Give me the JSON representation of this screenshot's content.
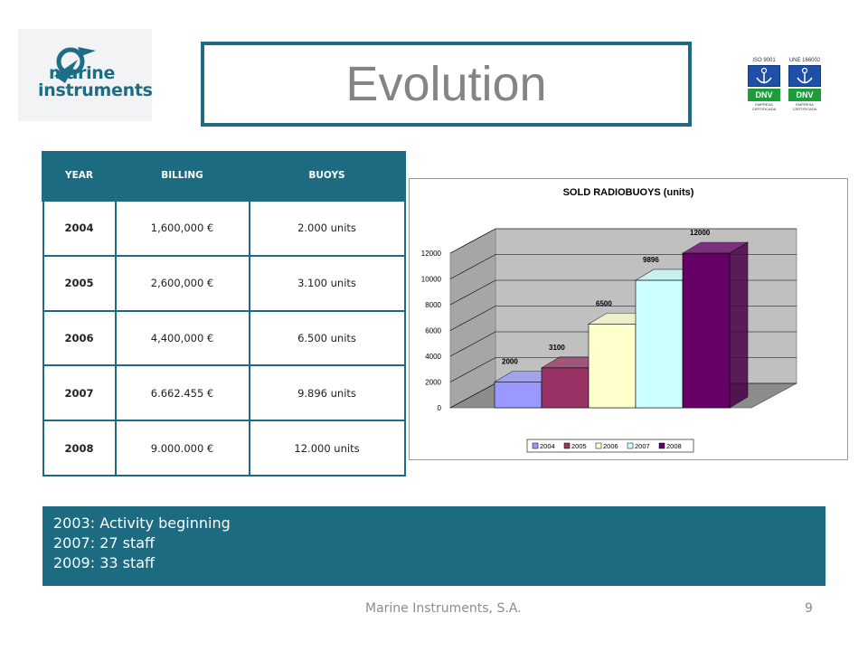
{
  "logo": {
    "line1": "marine",
    "line2": "instruments"
  },
  "title": "Evolution",
  "certs": [
    {
      "standard": "ISO 9001",
      "mark": "DNV",
      "caption": "EMPRESA CERTIFICADA"
    },
    {
      "standard": "UNE 166002",
      "mark": "DNV",
      "caption": "EMPRESA CERTIFICADA"
    }
  ],
  "table": {
    "headers": [
      "YEAR",
      "BILLING",
      "BUOYS"
    ],
    "rows": [
      [
        "2004",
        "1,600,000 €",
        "2.000 units"
      ],
      [
        "2005",
        "2,600,000 €",
        "3.100 units"
      ],
      [
        "2006",
        "4,400,000 €",
        "6.500 units"
      ],
      [
        "2007",
        "6.662.455 €",
        "9.896 units"
      ],
      [
        "2008",
        "9.000.000 €",
        "12.000 units"
      ]
    ]
  },
  "chart_data": {
    "type": "bar",
    "title": "SOLD RADIOBUOYS (units)",
    "categories": [
      "2004",
      "2005",
      "2006",
      "2007",
      "2008"
    ],
    "values": [
      2000,
      3100,
      6500,
      9896,
      12000
    ],
    "data_labels": [
      "2000",
      "3100",
      "6500",
      "9896",
      "12000"
    ],
    "yticks": [
      "0",
      "2000",
      "4000",
      "6000",
      "8000",
      "10000",
      "12000"
    ],
    "ylim": [
      0,
      12000
    ],
    "colors": [
      "#9999ff",
      "#993366",
      "#ffffcc",
      "#ccffff",
      "#660066"
    ],
    "grid": true,
    "legend": "bottom",
    "style": "3d"
  },
  "info": [
    "2003: Activity beginning",
    "2007: 27 staff",
    "2009: 33 staff"
  ],
  "footer": "Marine Instruments, S.A.",
  "page_number": "9"
}
